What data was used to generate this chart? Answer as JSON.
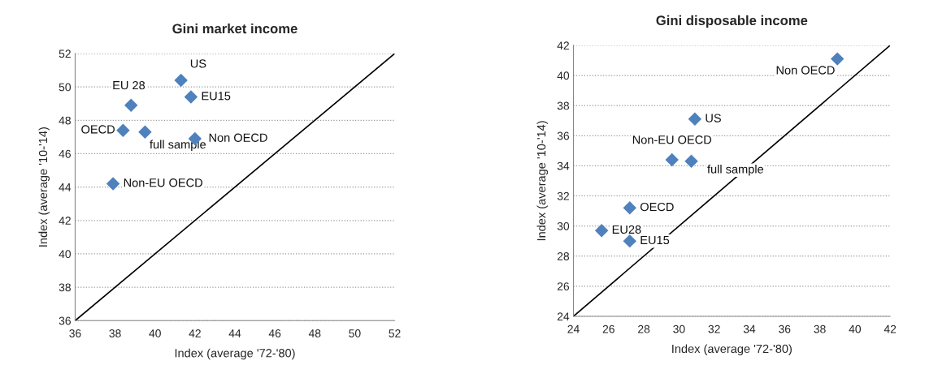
{
  "chart_data": [
    {
      "type": "scatter",
      "title": "Gini market income",
      "xlabel": "Index (average '72-'80)",
      "ylabel": "Index (average '10-'14)",
      "xlim": [
        36,
        52
      ],
      "xticks": [
        36,
        38,
        40,
        42,
        44,
        46,
        48,
        50,
        52
      ],
      "ylim": [
        36,
        52
      ],
      "yticks": [
        36,
        38,
        40,
        42,
        44,
        46,
        48,
        50,
        52
      ],
      "grid": "y",
      "legend": false,
      "marker": "diamond",
      "series": [
        {
          "color": "#4f81bd",
          "x": [
            41.3,
            41.8,
            38.8,
            38.4,
            39.5,
            42.0,
            37.9
          ],
          "values": [
            50.4,
            49.4,
            48.9,
            47.4,
            47.3,
            46.9,
            44.2
          ]
        },
        {
          "type": "line",
          "color": "#000000",
          "marker": "none",
          "line_style": "solid",
          "x": [
            36,
            52
          ],
          "values": [
            36,
            52
          ]
        }
      ],
      "annotations": [
        {
          "text": "US",
          "x": 41.3,
          "y": 50.4
        },
        {
          "text": "EU15",
          "x": 41.8,
          "y": 49.4
        },
        {
          "text": "EU 28",
          "x": 38.8,
          "y": 48.9
        },
        {
          "text": "OECD",
          "x": 38.4,
          "y": 47.4
        },
        {
          "text": "full sample",
          "x": 39.5,
          "y": 47.3
        },
        {
          "text": "Non OECD",
          "x": 42.0,
          "y": 46.9
        },
        {
          "text": "Non-EU OECD",
          "x": 37.9,
          "y": 44.2
        }
      ]
    },
    {
      "type": "scatter",
      "title": "Gini disposable income",
      "xlabel": "Index (average '72-'80)",
      "ylabel": "Index (average '10-'14)",
      "xlim": [
        24,
        42
      ],
      "xticks": [
        24,
        26,
        28,
        30,
        32,
        34,
        36,
        38,
        40,
        42
      ],
      "ylim": [
        24,
        42
      ],
      "yticks": [
        24,
        26,
        28,
        30,
        32,
        34,
        36,
        38,
        40,
        42
      ],
      "grid": "y",
      "legend": false,
      "marker": "diamond",
      "series": [
        {
          "color": "#4f81bd",
          "x": [
            39.0,
            30.9,
            29.6,
            30.7,
            27.2,
            25.6,
            27.2
          ],
          "values": [
            41.1,
            37.1,
            34.4,
            34.3,
            31.2,
            29.7,
            29.0
          ]
        },
        {
          "type": "line",
          "color": "#000000",
          "marker": "none",
          "line_style": "solid",
          "x": [
            24,
            42
          ],
          "values": [
            24,
            42
          ]
        }
      ],
      "annotations": [
        {
          "text": "Non OECD",
          "x": 39.0,
          "y": 41.1
        },
        {
          "text": "US",
          "x": 30.9,
          "y": 37.1
        },
        {
          "text": "Non-EU OECD",
          "x": 29.6,
          "y": 34.4
        },
        {
          "text": "full sample",
          "x": 30.7,
          "y": 34.3
        },
        {
          "text": "OECD",
          "x": 27.2,
          "y": 31.2
        },
        {
          "text": "EU28",
          "x": 25.6,
          "y": 29.7
        },
        {
          "text": "EU15",
          "x": 27.2,
          "y": 29.0
        }
      ]
    }
  ]
}
